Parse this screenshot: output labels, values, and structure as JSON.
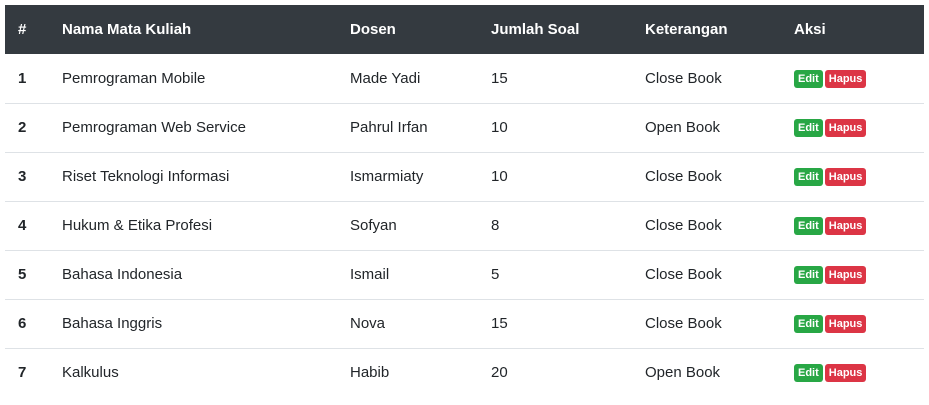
{
  "table": {
    "headers": [
      "#",
      "Nama Mata Kuliah",
      "Dosen",
      "Jumlah Soal",
      "Keterangan",
      "Aksi"
    ],
    "rows": [
      {
        "no": "1",
        "nama": "Pemrograman Mobile",
        "dosen": "Made Yadi",
        "jumlah": "15",
        "keterangan": "Close Book"
      },
      {
        "no": "2",
        "nama": "Pemrograman Web Service",
        "dosen": "Pahrul Irfan",
        "jumlah": "10",
        "keterangan": "Open Book"
      },
      {
        "no": "3",
        "nama": "Riset Teknologi Informasi",
        "dosen": "Ismarmiaty",
        "jumlah": "10",
        "keterangan": "Close Book"
      },
      {
        "no": "4",
        "nama": "Hukum & Etika Profesi",
        "dosen": "Sofyan",
        "jumlah": "8",
        "keterangan": "Close Book"
      },
      {
        "no": "5",
        "nama": "Bahasa Indonesia",
        "dosen": "Ismail",
        "jumlah": "5",
        "keterangan": "Close Book"
      },
      {
        "no": "6",
        "nama": "Bahasa Inggris",
        "dosen": "Nova",
        "jumlah": "15",
        "keterangan": "Close Book"
      },
      {
        "no": "7",
        "nama": "Kalkulus",
        "dosen": "Habib",
        "jumlah": "20",
        "keterangan": "Open Book"
      }
    ],
    "actions": {
      "edit_label": "Edit",
      "hapus_label": "Hapus"
    }
  },
  "colors": {
    "header_bg": "#343a40",
    "edit_button": "#28a745",
    "hapus_button": "#dc3545"
  }
}
